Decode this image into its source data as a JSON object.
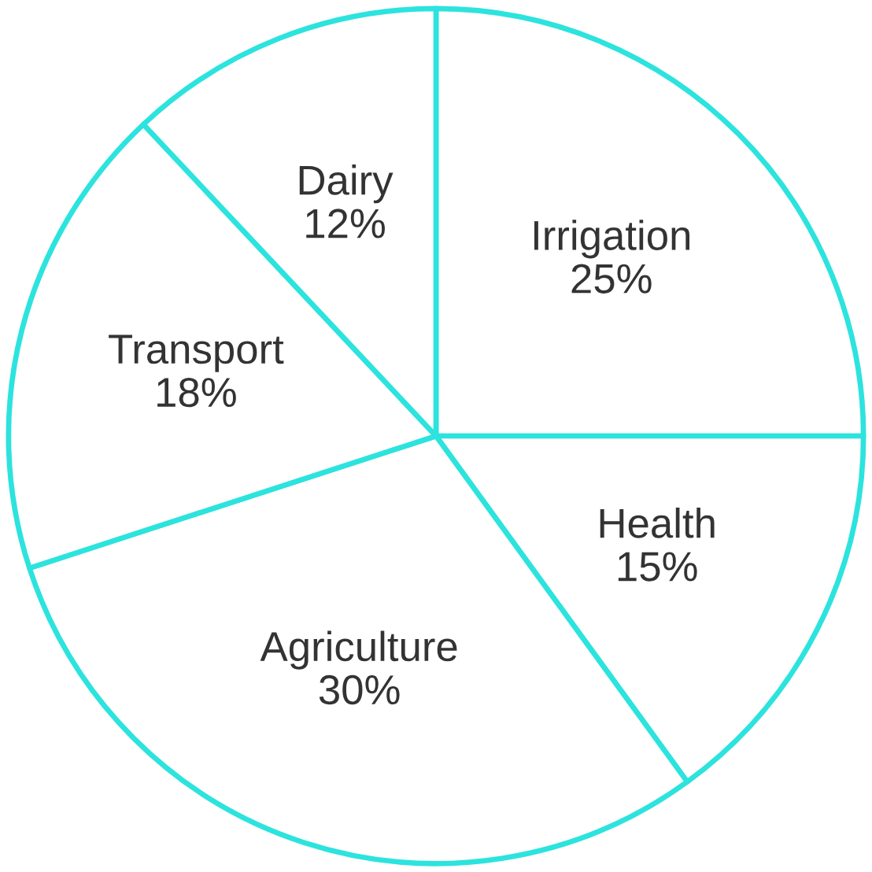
{
  "chart_data": {
    "type": "pie",
    "categories": [
      "Irrigation",
      "Health",
      "Agriculture",
      "Transport",
      "Dairy"
    ],
    "values": [
      25,
      15,
      30,
      18,
      12
    ],
    "value_labels": [
      "25%",
      "15%",
      "30%",
      "18%",
      "12%"
    ],
    "colors": [
      "#ffffff",
      "#ffffff",
      "#ffffff",
      "#ffffff",
      "#ffffff"
    ]
  }
}
